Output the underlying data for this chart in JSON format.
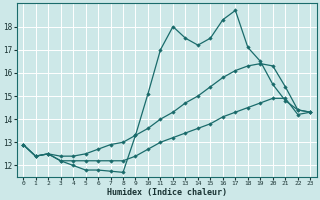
{
  "xlabel": "Humidex (Indice chaleur)",
  "bg_color": "#cde8e8",
  "grid_color": "#ffffff",
  "line_color": "#1a6b6b",
  "marker": "D",
  "marker_size": 1.8,
  "linewidth": 0.9,
  "xlim": [
    -0.5,
    23.5
  ],
  "ylim": [
    11.5,
    19.0
  ],
  "yticks": [
    12,
    13,
    14,
    15,
    16,
    17,
    18
  ],
  "xticks": [
    0,
    1,
    2,
    3,
    4,
    5,
    6,
    7,
    8,
    9,
    10,
    11,
    12,
    13,
    14,
    15,
    16,
    17,
    18,
    19,
    20,
    21,
    22,
    23
  ],
  "series": [
    [
      12.9,
      12.4,
      12.5,
      12.2,
      12.0,
      11.8,
      11.8,
      11.75,
      11.7,
      13.3,
      15.1,
      17.0,
      18.0,
      17.5,
      17.2,
      17.5,
      18.3,
      18.7,
      17.1,
      16.5,
      15.5,
      14.8,
      14.4,
      14.3
    ],
    [
      12.9,
      12.4,
      12.5,
      12.2,
      12.2,
      12.2,
      12.2,
      12.2,
      12.2,
      12.4,
      12.7,
      13.0,
      13.2,
      13.4,
      13.6,
      13.8,
      14.1,
      14.3,
      14.5,
      14.7,
      14.9,
      14.9,
      14.2,
      14.3
    ],
    [
      12.9,
      12.4,
      12.5,
      12.4,
      12.4,
      12.5,
      12.7,
      12.9,
      13.0,
      13.3,
      13.6,
      14.0,
      14.3,
      14.7,
      15.0,
      15.4,
      15.8,
      16.1,
      16.3,
      16.4,
      16.3,
      15.4,
      14.4,
      14.3
    ]
  ]
}
